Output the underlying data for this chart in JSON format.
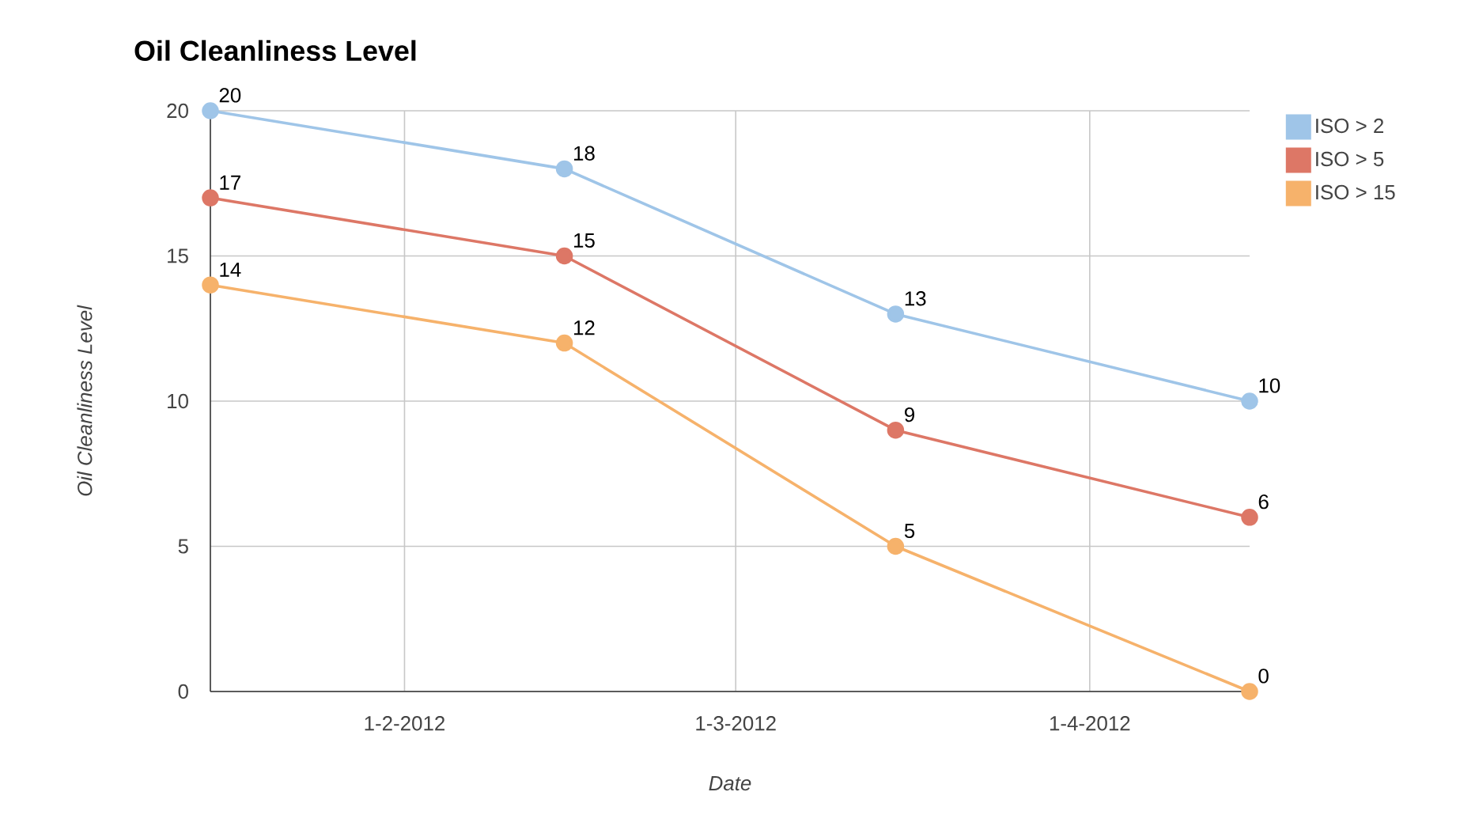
{
  "chart_data": {
    "type": "line",
    "title": "Oil Cleanliness Level",
    "xlabel": "Date",
    "ylabel": "Oil Cleanliness Level",
    "x": [
      "2012-01-15",
      "2012-02-15",
      "2012-03-15",
      "2012-04-15"
    ],
    "series": [
      {
        "name": "ISO > 2",
        "color": "#9fc5e8",
        "values": [
          20,
          18,
          13,
          10
        ]
      },
      {
        "name": "ISO > 5",
        "color": "#dd7766",
        "values": [
          17,
          15,
          9,
          6
        ]
      },
      {
        "name": "ISO > 15",
        "color": "#f6b26b",
        "values": [
          14,
          12,
          5,
          0
        ]
      }
    ],
    "xlim": [
      "2012-01-15",
      "2012-04-15"
    ],
    "xticks": [
      {
        "value": "2012-02-01",
        "label": "1-2-2012"
      },
      {
        "value": "2012-03-01",
        "label": "1-3-2012"
      },
      {
        "value": "2012-04-01",
        "label": "1-4-2012"
      }
    ],
    "ylim": [
      0,
      20
    ],
    "yticks": [
      0,
      5,
      10,
      15,
      20
    ],
    "grid": true,
    "legend": "top right",
    "marker": "circle",
    "line_style": "solid",
    "data_labels": true
  }
}
